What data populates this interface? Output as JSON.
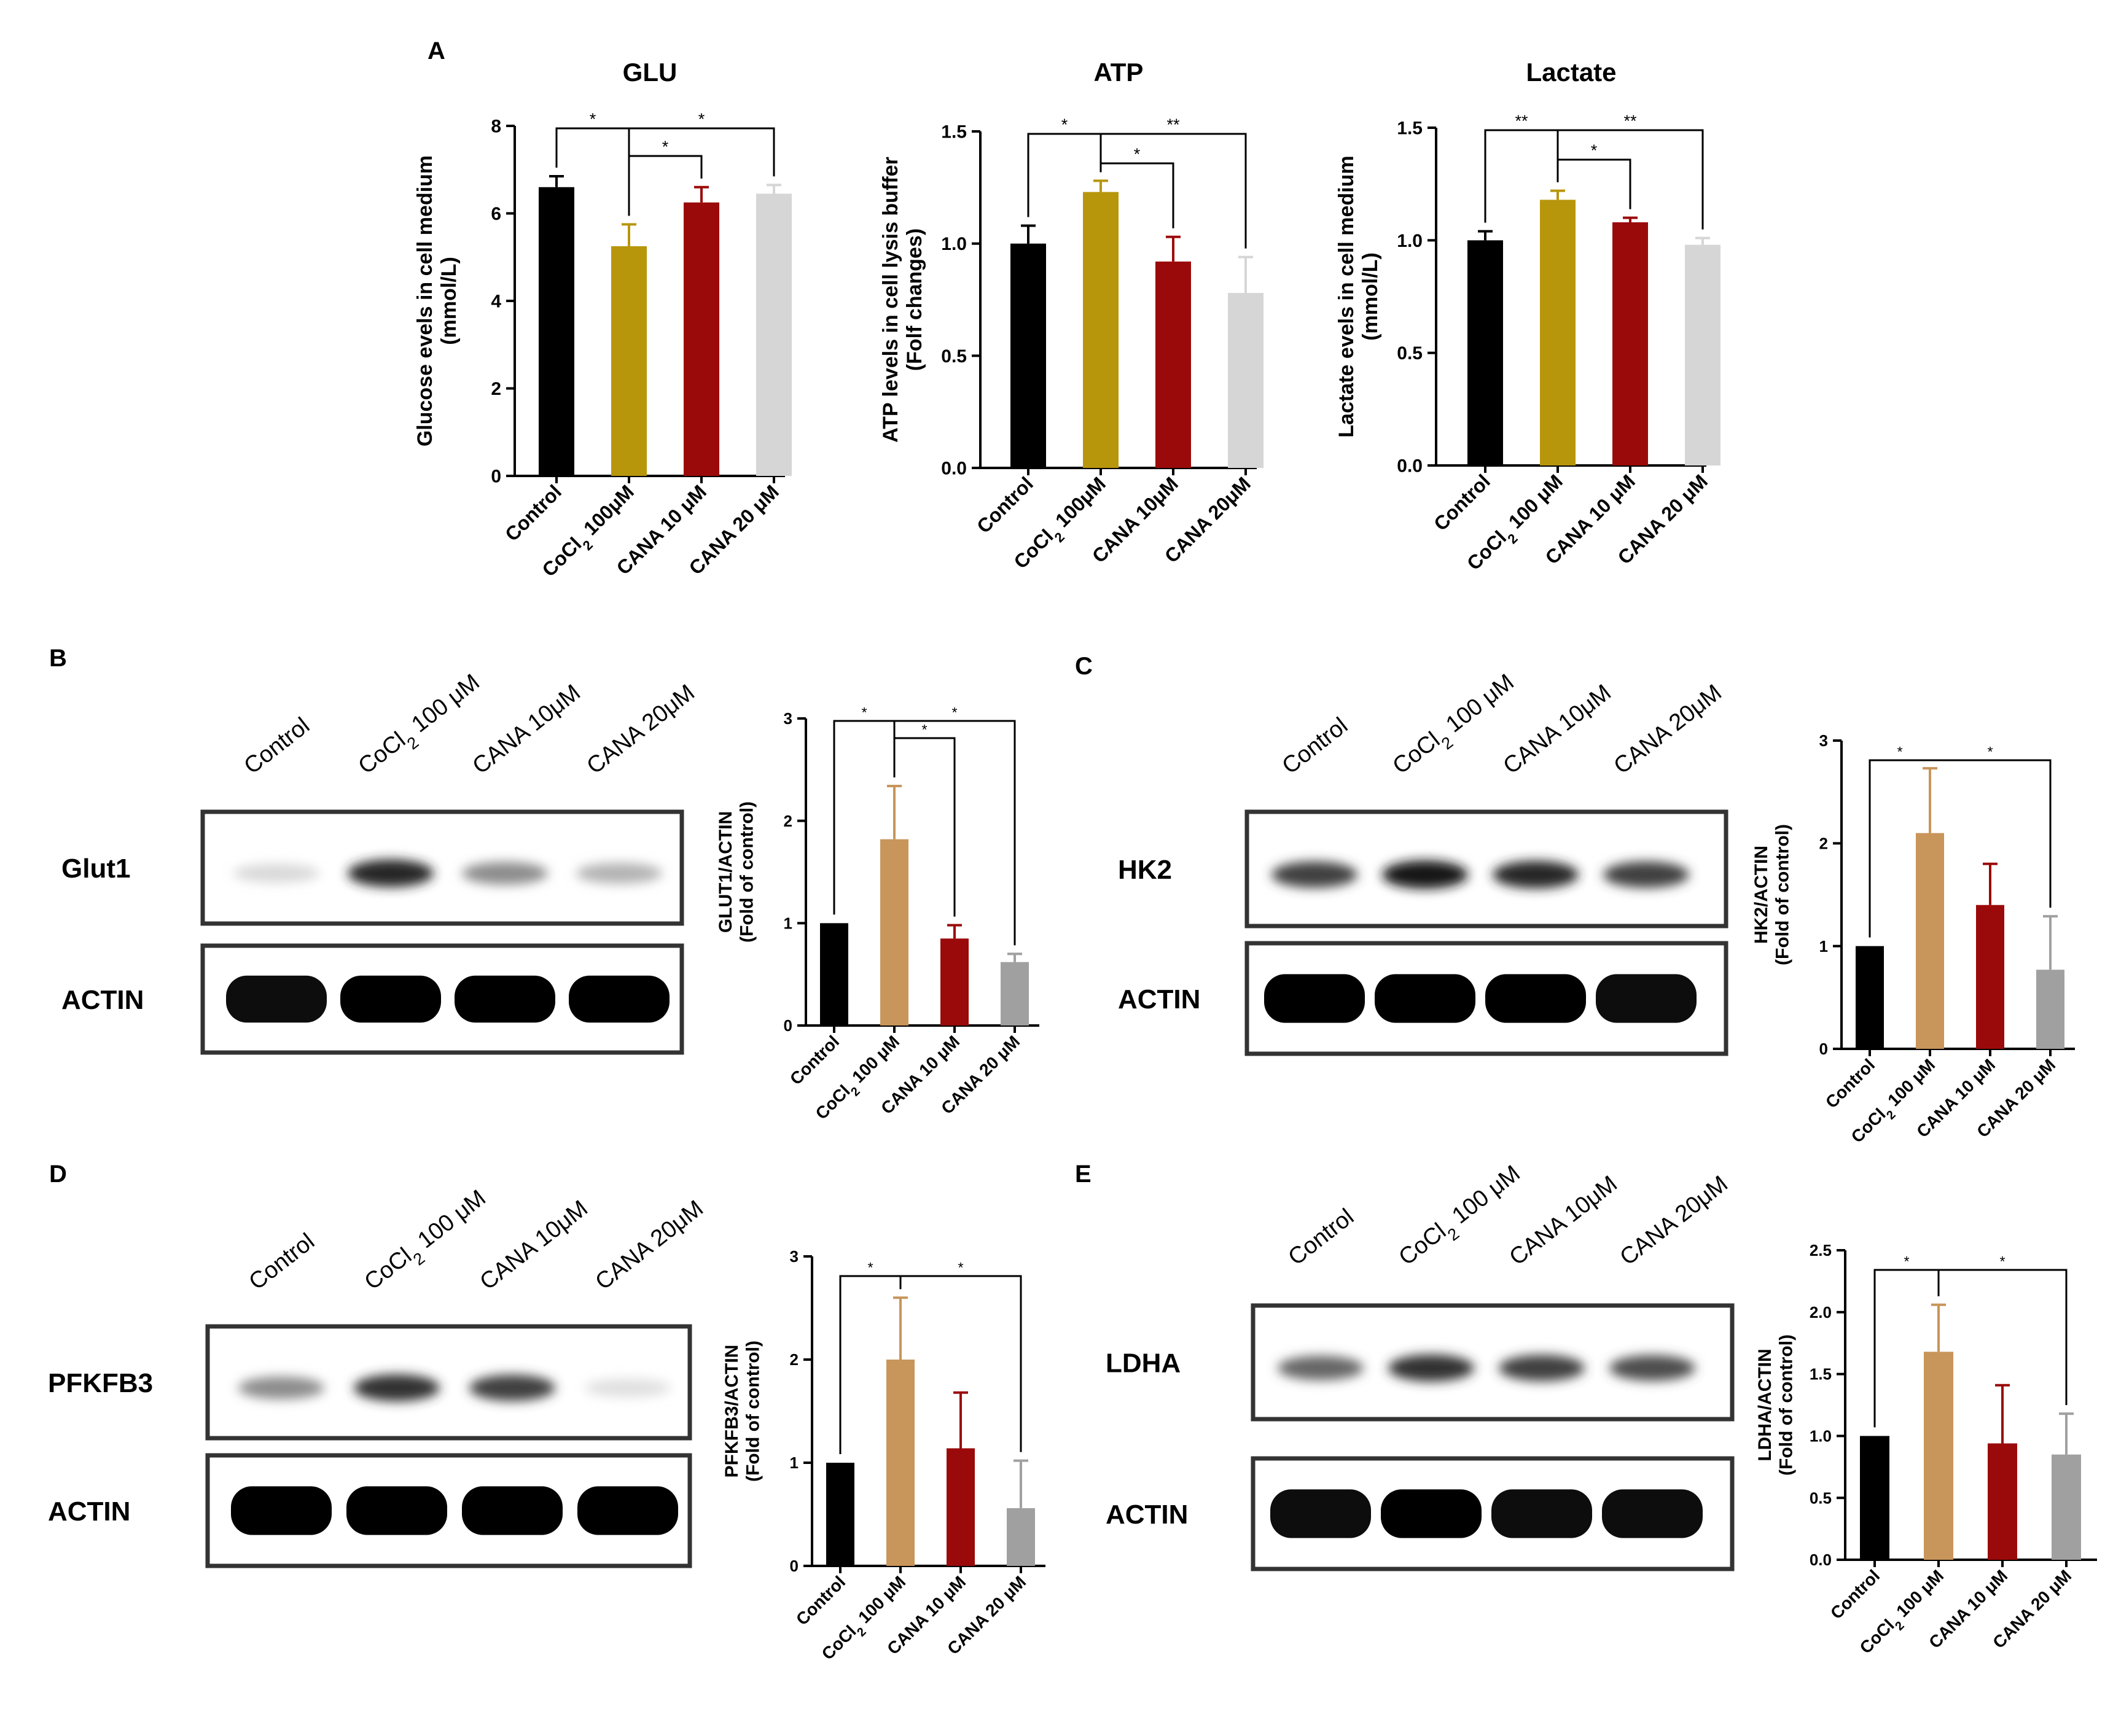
{
  "panel_labels": {
    "A": "A",
    "B": "B",
    "C": "C",
    "D": "D",
    "E": "E"
  },
  "chart_data": [
    {
      "id": "glu",
      "type": "bar",
      "title": "GLU",
      "ylabel_lines": [
        "Glucose evels in cell medium",
        "(mmol/L)"
      ],
      "categories": [
        "Control",
        "CoCl2 100μM",
        "CANA 10 μM",
        "CANA 20 μM"
      ],
      "values": [
        6.6,
        5.25,
        6.25,
        6.45
      ],
      "errors": [
        0.25,
        0.5,
        0.35,
        0.2
      ],
      "colors": [
        "#000000",
        "#b8960c",
        "#9b0a0a",
        "#d6d6d6"
      ],
      "ylim": [
        0,
        8
      ],
      "yticks": [
        "0",
        "2",
        "4",
        "6",
        "8"
      ],
      "sig": [
        {
          "from": 0,
          "to": 1,
          "label": "*",
          "level": 1
        },
        {
          "from": 1,
          "to": 2,
          "label": "*",
          "level": 0
        },
        {
          "from": 1,
          "to": 3,
          "label": "*",
          "level": 1
        }
      ]
    },
    {
      "id": "atp",
      "type": "bar",
      "title": "ATP",
      "ylabel_lines": [
        "ATP levels in cell lysis buffer",
        "(Folf changes)"
      ],
      "categories": [
        "Control",
        "CoCl2 100μM",
        "CANA 10μM",
        "CANA 20μM"
      ],
      "values": [
        1.0,
        1.23,
        0.92,
        0.78
      ],
      "errors": [
        0.08,
        0.05,
        0.11,
        0.16
      ],
      "colors": [
        "#000000",
        "#b8960c",
        "#9b0a0a",
        "#d6d6d6"
      ],
      "ylim": [
        0,
        1.5
      ],
      "yticks": [
        "0.0",
        "0.5",
        "1.0",
        "1.5"
      ],
      "sig": [
        {
          "from": 0,
          "to": 1,
          "label": "*",
          "level": 1
        },
        {
          "from": 1,
          "to": 2,
          "label": "*",
          "level": 0
        },
        {
          "from": 1,
          "to": 3,
          "label": "**",
          "level": 1
        }
      ]
    },
    {
      "id": "lactate",
      "type": "bar",
      "title": "Lactate",
      "ylabel_lines": [
        "Lactate evels in cell medium",
        "(mmol/L)"
      ],
      "categories": [
        "Control",
        "CoCl2 100 μM",
        "CANA 10 μM",
        "CANA 20 μM"
      ],
      "values": [
        1.0,
        1.18,
        1.08,
        0.98
      ],
      "errors": [
        0.04,
        0.04,
        0.02,
        0.03
      ],
      "colors": [
        "#000000",
        "#b8960c",
        "#9b0a0a",
        "#d6d6d6"
      ],
      "ylim": [
        0,
        1.5
      ],
      "yticks": [
        "0.0",
        "0.5",
        "1.0",
        "1.5"
      ],
      "sig": [
        {
          "from": 0,
          "to": 1,
          "label": "**",
          "level": 1
        },
        {
          "from": 1,
          "to": 2,
          "label": "*",
          "level": 0
        },
        {
          "from": 1,
          "to": 3,
          "label": "**",
          "level": 1
        }
      ]
    },
    {
      "id": "glut1",
      "type": "bar",
      "ylabel_lines": [
        "GLUT1/ACTIN",
        "(Fold of control)"
      ],
      "categories": [
        "Control",
        "CoCl2 100 μM",
        "CANA 10 μM",
        "CANA 20 μM"
      ],
      "values": [
        1.0,
        1.82,
        0.85,
        0.62
      ],
      "errors": [
        0.0,
        0.52,
        0.13,
        0.08
      ],
      "colors": [
        "#000000",
        "#c8955a",
        "#9b0a0a",
        "#a0a0a0"
      ],
      "ylim": [
        0,
        3
      ],
      "yticks": [
        "0",
        "1",
        "2",
        "3"
      ],
      "sig": [
        {
          "from": 0,
          "to": 1,
          "label": "*",
          "level": 1
        },
        {
          "from": 1,
          "to": 2,
          "label": "*",
          "level": 0
        },
        {
          "from": 1,
          "to": 3,
          "label": "*",
          "level": 1
        }
      ]
    },
    {
      "id": "hk2",
      "type": "bar",
      "ylabel_lines": [
        "HK2/ACTIN",
        "(Fold of control)"
      ],
      "categories": [
        "Control",
        "CoCl2 100 μM",
        "CANA 10 μM",
        "CANA 20 μM"
      ],
      "values": [
        1.0,
        2.1,
        1.4,
        0.77
      ],
      "errors": [
        0.0,
        0.63,
        0.4,
        0.52
      ],
      "colors": [
        "#000000",
        "#c8955a",
        "#9b0a0a",
        "#a0a0a0"
      ],
      "ylim": [
        0,
        3
      ],
      "yticks": [
        "0",
        "1",
        "2",
        "3"
      ],
      "sig": [
        {
          "from": 0,
          "to": 1,
          "label": "*",
          "level": 0
        },
        {
          "from": 1,
          "to": 3,
          "label": "*",
          "level": 0
        }
      ]
    },
    {
      "id": "pfkfb3",
      "type": "bar",
      "ylabel_lines": [
        "PFKFB3/ACTIN",
        "(Fold of control)"
      ],
      "categories": [
        "Control",
        "CoCl2 100 μM",
        "CANA 10 μM",
        "CANA 20 μM"
      ],
      "values": [
        1.0,
        2.0,
        1.14,
        0.56
      ],
      "errors": [
        0.0,
        0.6,
        0.54,
        0.46
      ],
      "colors": [
        "#000000",
        "#c8955a",
        "#9b0a0a",
        "#a0a0a0"
      ],
      "ylim": [
        0,
        3
      ],
      "yticks": [
        "0",
        "1",
        "2",
        "3"
      ],
      "sig": [
        {
          "from": 0,
          "to": 1,
          "label": "*",
          "level": 0
        },
        {
          "from": 1,
          "to": 3,
          "label": "*",
          "level": 0
        }
      ]
    },
    {
      "id": "ldha",
      "type": "bar",
      "ylabel_lines": [
        "LDHA/ACTIN",
        "(Fold of control)"
      ],
      "categories": [
        "Control",
        "CoCl2 100 μM",
        "CANA 10 μM",
        "CANA 20 μM"
      ],
      "values": [
        1.0,
        1.68,
        0.94,
        0.85
      ],
      "errors": [
        0.0,
        0.38,
        0.47,
        0.33
      ],
      "colors": [
        "#000000",
        "#c8955a",
        "#9b0a0a",
        "#a0a0a0"
      ],
      "ylim": [
        0,
        2.5
      ],
      "yticks": [
        "0.0",
        "0.5",
        "1.0",
        "1.5",
        "2.0",
        "2.5"
      ],
      "sig": [
        {
          "from": 0,
          "to": 1,
          "label": "*",
          "level": 0
        },
        {
          "from": 1,
          "to": 3,
          "label": "*",
          "level": 0
        }
      ]
    }
  ],
  "blots": [
    {
      "id": "blot-b",
      "lanes": [
        "Control",
        "CoCl2 100 μM",
        "CANA 10μM",
        "CANA 20μM"
      ],
      "target": "Glut1",
      "loading": "ACTIN",
      "target_intensity": [
        0.15,
        0.85,
        0.45,
        0.3
      ],
      "loading_intensity": [
        0.95,
        1.0,
        1.0,
        1.0
      ]
    },
    {
      "id": "blot-c",
      "lanes": [
        "Control",
        "CoCl2 100 μM",
        "CANA 10μM",
        "CANA 20μM"
      ],
      "target": "HK2",
      "loading": "ACTIN",
      "target_intensity": [
        0.75,
        0.9,
        0.85,
        0.75
      ],
      "loading_intensity": [
        1.0,
        1.0,
        1.0,
        0.95
      ]
    },
    {
      "id": "blot-d",
      "lanes": [
        "Control",
        "CoCl2 100 μM",
        "CANA 10μM",
        "CANA 20μM"
      ],
      "target": "PFKFB3",
      "loading": "ACTIN",
      "target_intensity": [
        0.45,
        0.8,
        0.75,
        0.12
      ],
      "loading_intensity": [
        1.0,
        1.0,
        1.0,
        1.0
      ]
    },
    {
      "id": "blot-e",
      "lanes": [
        "Control",
        "CoCl2 100 μM",
        "CANA 10μM",
        "CANA 20μM"
      ],
      "target": "LDHA",
      "loading": "ACTIN",
      "target_intensity": [
        0.6,
        0.8,
        0.75,
        0.7
      ],
      "loading_intensity": [
        0.95,
        1.0,
        0.95,
        0.95
      ]
    }
  ]
}
